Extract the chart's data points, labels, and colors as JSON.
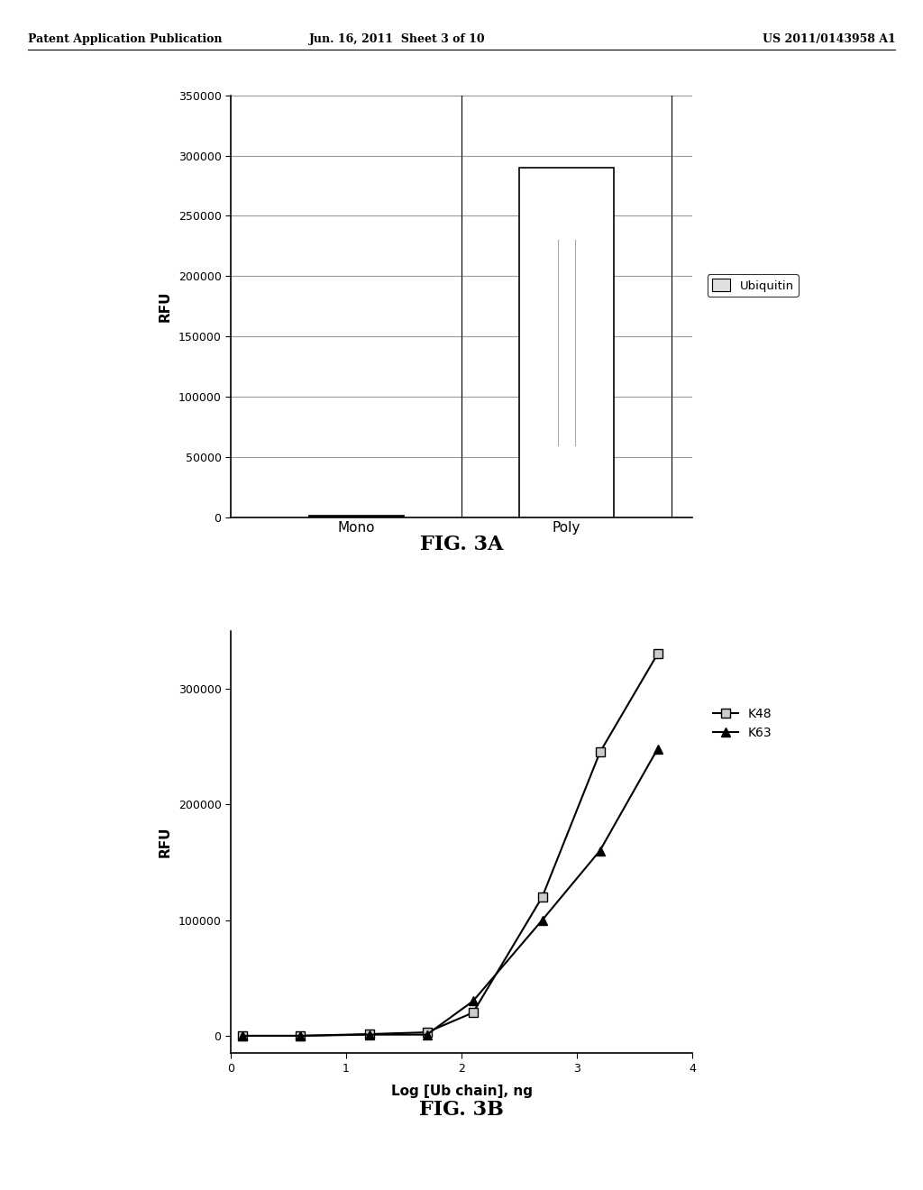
{
  "fig3a": {
    "categories": [
      "Mono",
      "Poly"
    ],
    "values": [
      2000,
      290000
    ],
    "error_low": 60000,
    "error_high": 60000,
    "bar_color": "white",
    "bar_edgecolor": "black",
    "ylabel": "RFU",
    "ylim": [
      0,
      350000
    ],
    "yticks": [
      0,
      50000,
      100000,
      150000,
      200000,
      250000,
      300000,
      350000
    ],
    "legend_label": "Ubiquitin",
    "title": "FIG. 3A",
    "bar_width": 0.45,
    "grid_color": "#999999"
  },
  "fig3b": {
    "k48_x": [
      0.1,
      0.6,
      1.2,
      1.7,
      2.1,
      2.7,
      3.2,
      3.7
    ],
    "k48_y": [
      0,
      0,
      1500,
      3000,
      20000,
      120000,
      245000,
      330000
    ],
    "k63_x": [
      0.1,
      0.6,
      1.2,
      1.7,
      2.1,
      2.7,
      3.2,
      3.7
    ],
    "k63_y": [
      0,
      0,
      1000,
      1000,
      30000,
      100000,
      160000,
      248000
    ],
    "ylabel": "RFU",
    "xlabel": "Log [Ub chain], ng",
    "xlim": [
      0,
      4
    ],
    "ylim": [
      -15000,
      350000
    ],
    "yticks": [
      0,
      100000,
      200000,
      300000
    ],
    "xticks": [
      0,
      1,
      2,
      3,
      4
    ],
    "title": "FIG. 3B",
    "k48_color": "black",
    "k63_color": "black",
    "k48_marker": "s",
    "k63_marker": "^",
    "k48_label": "K48",
    "k63_label": "K63"
  },
  "header_left": "Patent Application Publication",
  "header_center": "Jun. 16, 2011  Sheet 3 of 10",
  "header_right": "US 2011/0143958 A1",
  "bg_color": "white",
  "text_color": "black"
}
